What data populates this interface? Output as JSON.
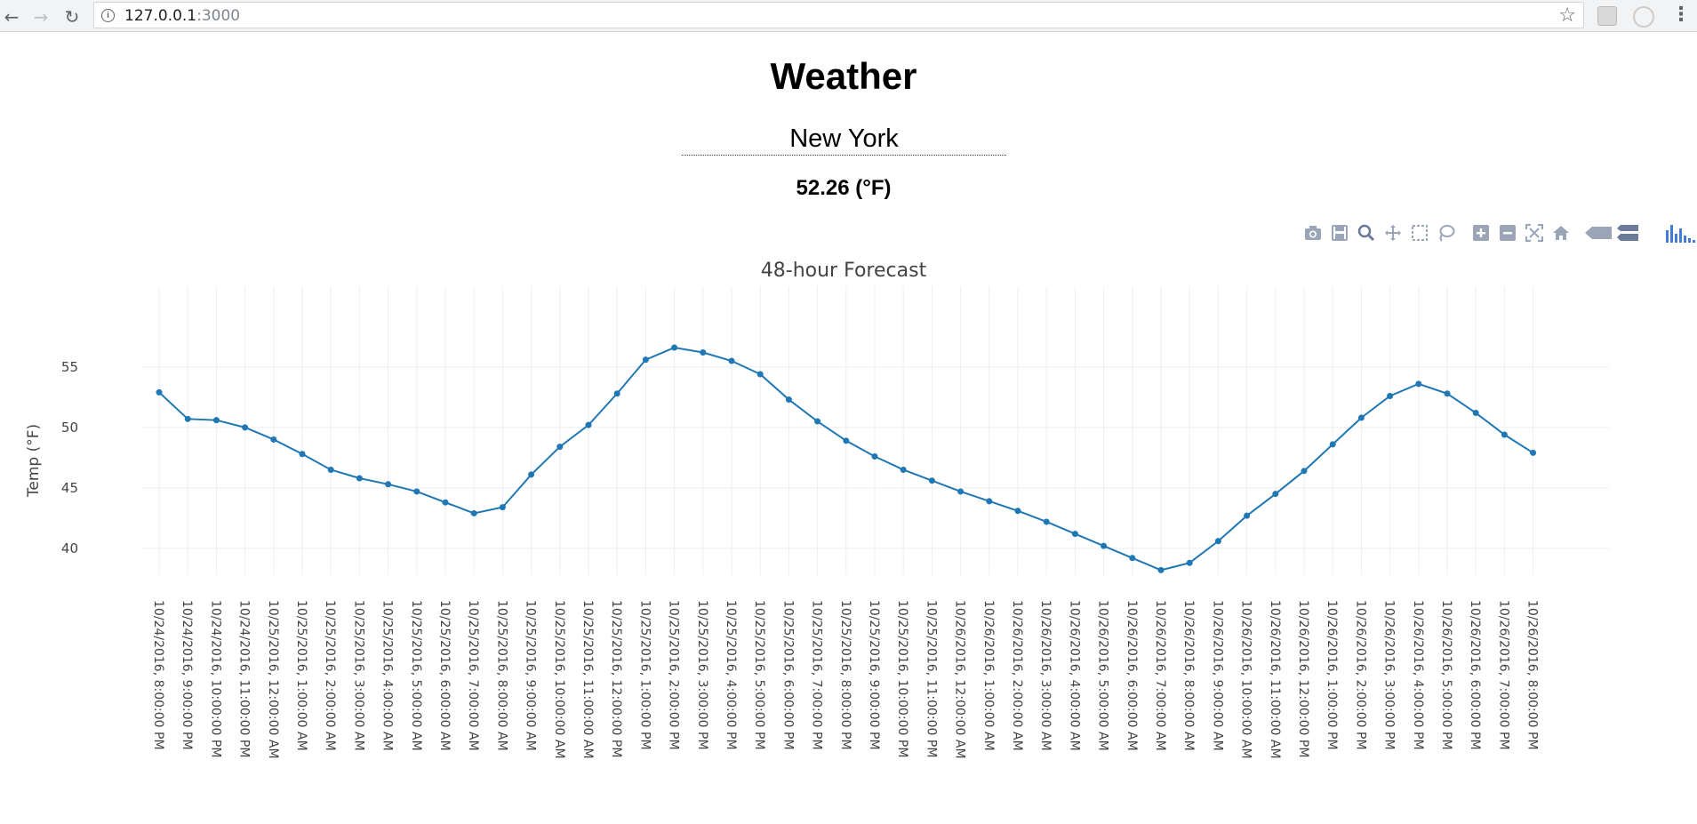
{
  "browser": {
    "url_host": "127.0.0.1",
    "url_port": ":3000",
    "info_icon": "info-icon",
    "back_icon": "back-arrow-icon",
    "forward_icon": "forward-arrow-icon",
    "reload_icon": "reload-icon",
    "star_icon": "star-icon",
    "menu_icon": "kebab-menu-icon"
  },
  "page": {
    "title": "Weather",
    "city_value": "New York",
    "current_temp": "52.26 (°F)"
  },
  "colors": {
    "line": "#1f77b4",
    "grid": "#eeeeee",
    "modebar_icon": "#9aa5b8",
    "modebar_active": "#447adb"
  },
  "modebar": [
    {
      "name": "camera-icon",
      "title": "Download plot as a png"
    },
    {
      "name": "save-icon",
      "title": "Save and edit plot in cloud"
    },
    {
      "name": "zoom-icon",
      "title": "Zoom"
    },
    {
      "name": "pan-icon",
      "title": "Pan"
    },
    {
      "name": "box-select-icon",
      "title": "Box Select"
    },
    {
      "name": "lasso-select-icon",
      "title": "Lasso Select"
    },
    {
      "name": "zoom-in-icon",
      "title": "Zoom in"
    },
    {
      "name": "zoom-out-icon",
      "title": "Zoom out"
    },
    {
      "name": "autoscale-icon",
      "title": "Autoscale"
    },
    {
      "name": "reset-axes-icon",
      "title": "Reset axes"
    },
    {
      "name": "hover-closest-icon",
      "title": "Show closest data on hover"
    },
    {
      "name": "hover-compare-icon",
      "title": "Compare data on hover"
    },
    {
      "name": "plotly-logo-icon",
      "title": "Produced with Plotly"
    }
  ],
  "chart_data": {
    "type": "line",
    "title": "48-hour Forecast",
    "xlabel": "",
    "ylabel": "Temp (°F)",
    "ylim": [
      37.2,
      58.0
    ],
    "yticks": [
      40,
      45,
      50,
      55
    ],
    "grid": true,
    "categories": [
      "10/24/2016, 8:00:00 PM",
      "10/24/2016, 9:00:00 PM",
      "10/24/2016, 10:00:00 PM",
      "10/24/2016, 11:00:00 PM",
      "10/25/2016, 12:00:00 AM",
      "10/25/2016, 1:00:00 AM",
      "10/25/2016, 2:00:00 AM",
      "10/25/2016, 3:00:00 AM",
      "10/25/2016, 4:00:00 AM",
      "10/25/2016, 5:00:00 AM",
      "10/25/2016, 6:00:00 AM",
      "10/25/2016, 7:00:00 AM",
      "10/25/2016, 8:00:00 AM",
      "10/25/2016, 9:00:00 AM",
      "10/25/2016, 10:00:00 AM",
      "10/25/2016, 11:00:00 AM",
      "10/25/2016, 12:00:00 PM",
      "10/25/2016, 1:00:00 PM",
      "10/25/2016, 2:00:00 PM",
      "10/25/2016, 3:00:00 PM",
      "10/25/2016, 4:00:00 PM",
      "10/25/2016, 5:00:00 PM",
      "10/25/2016, 6:00:00 PM",
      "10/25/2016, 7:00:00 PM",
      "10/25/2016, 8:00:00 PM",
      "10/25/2016, 9:00:00 PM",
      "10/25/2016, 10:00:00 PM",
      "10/25/2016, 11:00:00 PM",
      "10/26/2016, 12:00:00 AM",
      "10/26/2016, 1:00:00 AM",
      "10/26/2016, 2:00:00 AM",
      "10/26/2016, 3:00:00 AM",
      "10/26/2016, 4:00:00 AM",
      "10/26/2016, 5:00:00 AM",
      "10/26/2016, 6:00:00 AM",
      "10/26/2016, 7:00:00 AM",
      "10/26/2016, 8:00:00 AM",
      "10/26/2016, 9:00:00 AM",
      "10/26/2016, 10:00:00 AM",
      "10/26/2016, 11:00:00 AM",
      "10/26/2016, 12:00:00 PM",
      "10/26/2016, 1:00:00 PM",
      "10/26/2016, 2:00:00 PM",
      "10/26/2016, 3:00:00 PM",
      "10/26/2016, 4:00:00 PM",
      "10/26/2016, 5:00:00 PM",
      "10/26/2016, 6:00:00 PM",
      "10/26/2016, 7:00:00 PM",
      "10/26/2016, 8:00:00 PM"
    ],
    "series": [
      {
        "name": "Temp",
        "values": [
          52.9,
          50.7,
          50.6,
          50.0,
          49.0,
          47.8,
          46.5,
          45.8,
          45.3,
          44.7,
          43.8,
          42.9,
          43.4,
          46.1,
          48.4,
          50.2,
          52.8,
          55.6,
          56.6,
          56.2,
          55.5,
          54.4,
          52.3,
          50.5,
          48.9,
          47.6,
          46.5,
          45.6,
          44.7,
          43.9,
          43.1,
          42.2,
          41.2,
          40.2,
          39.2,
          38.2,
          38.8,
          40.6,
          42.7,
          44.5,
          46.4,
          48.6,
          50.8,
          52.6,
          53.6,
          52.8,
          51.2,
          49.4,
          47.9
        ]
      }
    ]
  }
}
